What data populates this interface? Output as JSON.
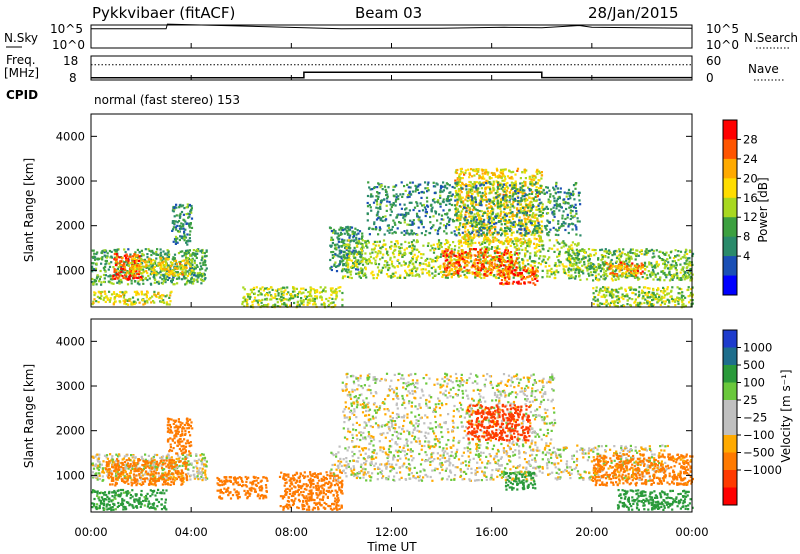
{
  "header": {
    "station": "Pykkvibaer (fitACF)",
    "beam": "Beam 03",
    "date": "28/Jan/2015"
  },
  "top_panels": {
    "nsky_label": "N.Sky",
    "nsearch_label": "N.Search",
    "nsky_ticks": [
      "10^5",
      "10^0"
    ],
    "nsky_right_ticks": [
      "10^5",
      "10^0"
    ],
    "freq_label_1": "Freq.",
    "freq_label_2": "[MHz]",
    "freq_ticks": [
      "18",
      "8"
    ],
    "nave_ticks": [
      "60",
      "0"
    ],
    "nave_label": "Nave",
    "cpid_label": "CPID",
    "cpid_text": "normal (fast stereo) 153"
  },
  "axes": {
    "ylabel": "Slant Range [km]",
    "xlabel": "Time UT",
    "xticks": [
      "00:00",
      "04:00",
      "08:00",
      "12:00",
      "16:00",
      "20:00",
      "00:00"
    ],
    "yticks": [
      "1000",
      "2000",
      "3000",
      "4000"
    ]
  },
  "colorbars": {
    "power": {
      "label": "Power [dB]",
      "ticks": [
        "28",
        "24",
        "20",
        "16",
        "12",
        "8",
        "4"
      ],
      "colors": [
        "#ff0000",
        "#ff5500",
        "#ffaa00",
        "#ffdd00",
        "#a8d820",
        "#3ca040",
        "#2a8a6a",
        "#1a4fb5",
        "#0000ff"
      ]
    },
    "velocity": {
      "label": "Velocity [m s⁻¹]",
      "ticks": [
        "1000",
        "500",
        "100",
        "25",
        "−25",
        "−100",
        "−500",
        "−1000"
      ],
      "colors": [
        "#1e3ccc",
        "#1e6e8c",
        "#2a9a3a",
        "#6ac83c",
        "#c0c0c0",
        "#c0c0c0",
        "#ffaa00",
        "#ff7a00",
        "#ff3a00",
        "#ff0000"
      ]
    }
  },
  "chart_data": [
    {
      "type": "line",
      "title": "N.Sky / N.Search",
      "x": [
        0,
        3,
        3.05,
        10,
        14,
        16.5,
        18,
        19.5,
        20,
        24
      ],
      "y_sky_log": [
        4.2,
        4.2,
        5.2,
        4.2,
        4.3,
        4.5,
        4.4,
        4.9,
        4.5,
        4.3
      ],
      "ylim": [
        0,
        5
      ]
    },
    {
      "type": "line",
      "title": "Frequency / Nave",
      "x": [
        0,
        8.5,
        8.5,
        18,
        18,
        24
      ],
      "freq_mhz": [
        8.9,
        8.9,
        11.2,
        11.2,
        9.0,
        9.0
      ],
      "nave": [
        38,
        38,
        38,
        38,
        38,
        38
      ],
      "ylim_freq": [
        8,
        18
      ],
      "ylim_nave": [
        0,
        60
      ]
    },
    {
      "type": "heatmap",
      "quantity": "power",
      "xlim": [
        0,
        24
      ],
      "ylim": [
        180,
        4500
      ],
      "x_unit": "hours UT",
      "y_unit": "km",
      "blobs": [
        {
          "t0": 0.0,
          "t1": 4.6,
          "r0": 700,
          "r1": 1500,
          "v": 12
        },
        {
          "t0": 0.8,
          "t1": 2.0,
          "r0": 800,
          "r1": 1400,
          "v": 28
        },
        {
          "t0": 1.5,
          "t1": 4.0,
          "r0": 900,
          "r1": 1300,
          "v": 20
        },
        {
          "t0": 0.0,
          "t1": 3.2,
          "r0": 250,
          "r1": 550,
          "v": 18
        },
        {
          "t0": 3.2,
          "t1": 4.0,
          "r0": 1600,
          "r1": 2500,
          "v": 10
        },
        {
          "t0": 6.0,
          "t1": 10.0,
          "r0": 200,
          "r1": 650,
          "v": 16
        },
        {
          "t0": 9.5,
          "t1": 10.8,
          "r0": 1000,
          "r1": 2000,
          "v": 10
        },
        {
          "t0": 10.0,
          "t1": 19.5,
          "r0": 850,
          "r1": 1700,
          "v": 16
        },
        {
          "t0": 14.0,
          "t1": 17.0,
          "r0": 900,
          "r1": 1500,
          "v": 26
        },
        {
          "t0": 16.3,
          "t1": 17.8,
          "r0": 700,
          "r1": 1100,
          "v": 28
        },
        {
          "t0": 14.5,
          "t1": 18.0,
          "r0": 1600,
          "r1": 3300,
          "v": 20
        },
        {
          "t0": 11.0,
          "t1": 19.5,
          "r0": 1800,
          "r1": 3000,
          "v": 10
        },
        {
          "t0": 19.0,
          "t1": 24.0,
          "r0": 800,
          "r1": 1500,
          "v": 14
        },
        {
          "t0": 20.5,
          "t1": 22.0,
          "r0": 900,
          "r1": 1200,
          "v": 24
        },
        {
          "t0": 20.0,
          "t1": 24.0,
          "r0": 200,
          "r1": 650,
          "v": 16
        }
      ]
    },
    {
      "type": "heatmap",
      "quantity": "velocity",
      "xlim": [
        0,
        24
      ],
      "ylim": [
        180,
        4500
      ],
      "x_unit": "hours UT",
      "y_unit": "km",
      "blobs": [
        {
          "t0": 0.0,
          "t1": 4.6,
          "r0": 900,
          "r1": 1500,
          "v": 0
        },
        {
          "t0": 0.5,
          "t1": 3.8,
          "r0": 800,
          "r1": 1400,
          "v": -150
        },
        {
          "t0": 0.0,
          "t1": 3.0,
          "r0": 250,
          "r1": 700,
          "v": 150
        },
        {
          "t0": 3.0,
          "t1": 4.0,
          "r0": 1500,
          "r1": 2300,
          "v": -200
        },
        {
          "t0": 5.0,
          "t1": 7.0,
          "r0": 500,
          "r1": 1000,
          "v": -200
        },
        {
          "t0": 7.5,
          "t1": 10.0,
          "r0": 250,
          "r1": 1100,
          "v": -300
        },
        {
          "t0": 9.5,
          "t1": 23.0,
          "r0": 900,
          "r1": 1700,
          "v": 0
        },
        {
          "t0": 10.0,
          "t1": 18.5,
          "r0": 1700,
          "r1": 3300,
          "v": 0
        },
        {
          "t0": 15.0,
          "t1": 17.5,
          "r0": 1800,
          "r1": 2600,
          "v": -600
        },
        {
          "t0": 16.5,
          "t1": 17.7,
          "r0": 700,
          "r1": 1100,
          "v": 300
        },
        {
          "t0": 21.0,
          "t1": 24.0,
          "r0": 250,
          "r1": 700,
          "v": 200
        },
        {
          "t0": 20.0,
          "t1": 24.0,
          "r0": 800,
          "r1": 1500,
          "v": -150
        }
      ]
    }
  ]
}
